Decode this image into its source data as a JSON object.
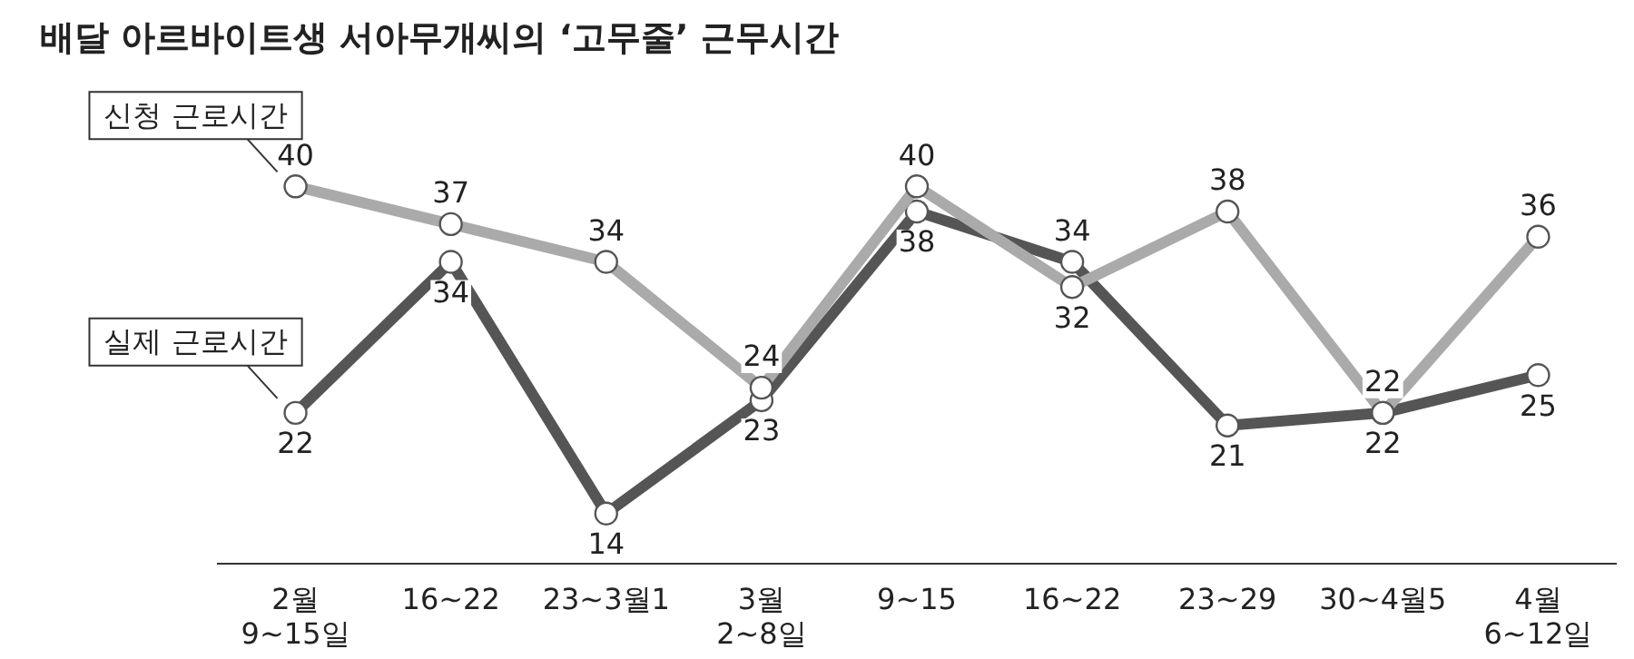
{
  "chart_data": {
    "type": "line",
    "title": "배달 아르바이트생 서아무개씨의 ‘고무줄’ 근무시간",
    "categories": [
      "2월\n9~15일",
      "16~22",
      "23~3월1",
      "3월\n2~8일",
      "9~15",
      "16~22",
      "23~29",
      "30~4월5",
      "4월\n6~12일"
    ],
    "series": [
      {
        "name": "신청 근로시간",
        "color": "#aaaaaa",
        "values": [
          40,
          37,
          34,
          24,
          40,
          32,
          38,
          22,
          36
        ]
      },
      {
        "name": "실제 근로시간",
        "color": "#555555",
        "values": [
          22,
          34,
          14,
          23,
          38,
          34,
          21,
          22,
          25
        ]
      }
    ],
    "data_labels": true,
    "legend": false,
    "grid": false,
    "tick_labels": "x",
    "marker": "circle",
    "line_style": "solid"
  }
}
